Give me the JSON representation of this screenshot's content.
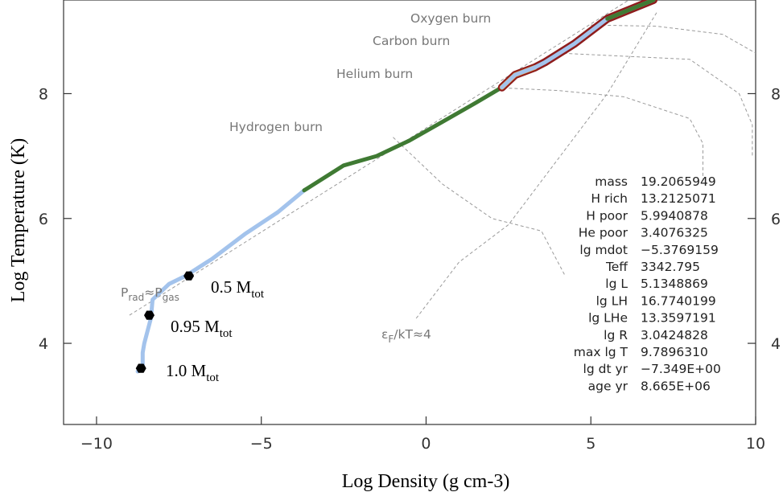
{
  "chart_data": {
    "type": "line",
    "xlabel": "Log Density (g cm-3)",
    "ylabel": "Log Temperature (K)",
    "xlim": [
      -11,
      10
    ],
    "ylim": [
      2.7,
      9.5
    ],
    "x_ticks": [
      -10,
      -5,
      0,
      5,
      10
    ],
    "x_tick_labels": [
      "−10",
      "−5",
      "0",
      "5",
      "10"
    ],
    "y_ticks": [
      4,
      6,
      8
    ],
    "y_tick_labels": [
      "4",
      "6",
      "8"
    ],
    "grid": false,
    "colors": {
      "envelope": "#a3c3ec",
      "burning": "#3f7a33",
      "convective": "#8e1c1c",
      "overshoot": "#e08a2c",
      "reference": "#9a9a9a",
      "marker": "#000000"
    },
    "profile_segments": [
      {
        "name": "",
        "color": "envelope",
        "x": [
          -8.75,
          -8.6,
          -8.6,
          -8.55,
          -8.45,
          -8.35,
          -8.3,
          -7.8,
          -7.3,
          -6.5,
          -5.5,
          -4.5,
          -3.7
        ],
        "y": [
          3.55,
          3.6,
          3.85,
          4.0,
          4.2,
          4.4,
          4.7,
          4.95,
          5.08,
          5.35,
          5.75,
          6.1,
          6.45
        ]
      },
      {
        "name": "",
        "color": "burning",
        "x": [
          -3.7,
          -2.5,
          -1.5,
          -0.5,
          0.5,
          1.5,
          2.3
        ],
        "y": [
          6.45,
          6.85,
          7.0,
          7.25,
          7.55,
          7.85,
          8.1
        ]
      },
      {
        "name": "",
        "color": "convective",
        "x": [
          2.3,
          2.7,
          3.3,
          3.6,
          4.5,
          5.5,
          6.2,
          6.9
        ],
        "y": [
          8.1,
          8.3,
          8.42,
          8.5,
          8.8,
          9.2,
          9.35,
          9.5
        ]
      }
    ],
    "reference_lines": [
      {
        "label": "Prad≈Pgas",
        "x": [
          -9.0,
          -6.0,
          -3.0,
          0.0,
          3.0,
          6.0,
          9.0
        ],
        "y": [
          4.45,
          5.45,
          6.45,
          7.45,
          8.45,
          9.45,
          10.45
        ]
      },
      {
        "label": "εF/kT≈4",
        "x": [
          -0.3,
          1.0,
          2.5,
          3.5,
          4.5,
          5.5,
          7.0
        ],
        "y": [
          4.4,
          5.3,
          5.9,
          6.6,
          7.3,
          8.0,
          9.3
        ]
      }
    ],
    "burn_lines": [
      {
        "label": "Hydrogen burn",
        "x": [
          -1.0,
          0.5,
          2.0,
          3.5,
          4.2
        ],
        "y": [
          7.3,
          6.55,
          6.0,
          5.8,
          5.1
        ]
      },
      {
        "label": "Helium burn",
        "x": [
          2.0,
          4.0,
          6.0,
          8.0,
          8.4,
          8.4
        ],
        "y": [
          8.1,
          8.05,
          7.95,
          7.6,
          7.2,
          6.6
        ]
      },
      {
        "label": "Carbon burn",
        "x": [
          4.0,
          6.0,
          8.0,
          9.5,
          9.9,
          9.9
        ],
        "y": [
          8.65,
          8.6,
          8.55,
          8.0,
          7.5,
          7.0
        ]
      },
      {
        "label": "Oxygen burn",
        "x": [
          5.0,
          7.0,
          9.0,
          10.0
        ],
        "y": [
          9.1,
          9.08,
          8.95,
          8.65
        ]
      }
    ],
    "burn_labels": [
      "Oxygen burn",
      "Carbon burn",
      "Helium burn",
      "Hydrogen burn"
    ],
    "markers": [
      {
        "x": -7.2,
        "y": 5.08,
        "label": "0.5 M",
        "sub": "tot"
      },
      {
        "x": -8.4,
        "y": 4.45,
        "label": "0.95 M",
        "sub": "tot"
      },
      {
        "x": -8.65,
        "y": 3.6,
        "label": "1.0 M",
        "sub": "tot"
      }
    ],
    "info": [
      {
        "key": "mass",
        "value": "19.2065949"
      },
      {
        "key": "H rich",
        "value": "13.2125071"
      },
      {
        "key": "H poor",
        "value": "5.9940878"
      },
      {
        "key": "He poor",
        "value": "3.4076325"
      },
      {
        "key": "lg mdot",
        "value": "−5.3769159"
      },
      {
        "key": "Teff",
        "value": "3342.795"
      },
      {
        "key": "lg L",
        "value": "5.1348869"
      },
      {
        "key": "lg LH",
        "value": "16.7740199"
      },
      {
        "key": "lg LHe",
        "value": "13.3597191"
      },
      {
        "key": "lg R",
        "value": "3.0424828"
      },
      {
        "key": "max lg T",
        "value": "9.7896310"
      },
      {
        "key": "lg dt yr",
        "value": "−7.349E+00"
      },
      {
        "key": "age yr",
        "value": "8.665E+06"
      }
    ]
  }
}
